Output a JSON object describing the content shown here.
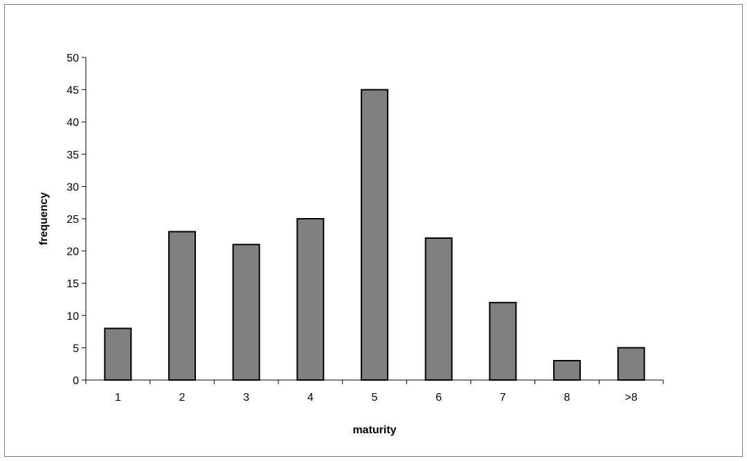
{
  "chart_data": {
    "type": "bar",
    "title": "",
    "xlabel": "maturity",
    "ylabel": "frequency",
    "categories": [
      "1",
      "2",
      "3",
      "4",
      "5",
      "6",
      "7",
      "8",
      ">8"
    ],
    "values": [
      8,
      23,
      21,
      25,
      45,
      22,
      12,
      3,
      5
    ],
    "ylim": [
      0,
      50
    ],
    "yticks": [
      0,
      5,
      10,
      15,
      20,
      25,
      30,
      35,
      40,
      45,
      50
    ],
    "grid": false,
    "legend": "none",
    "colors": {
      "bar_fill": "#808080",
      "bar_stroke": "#000000",
      "axis": "#000000",
      "frame": "#7f7f7f"
    }
  }
}
